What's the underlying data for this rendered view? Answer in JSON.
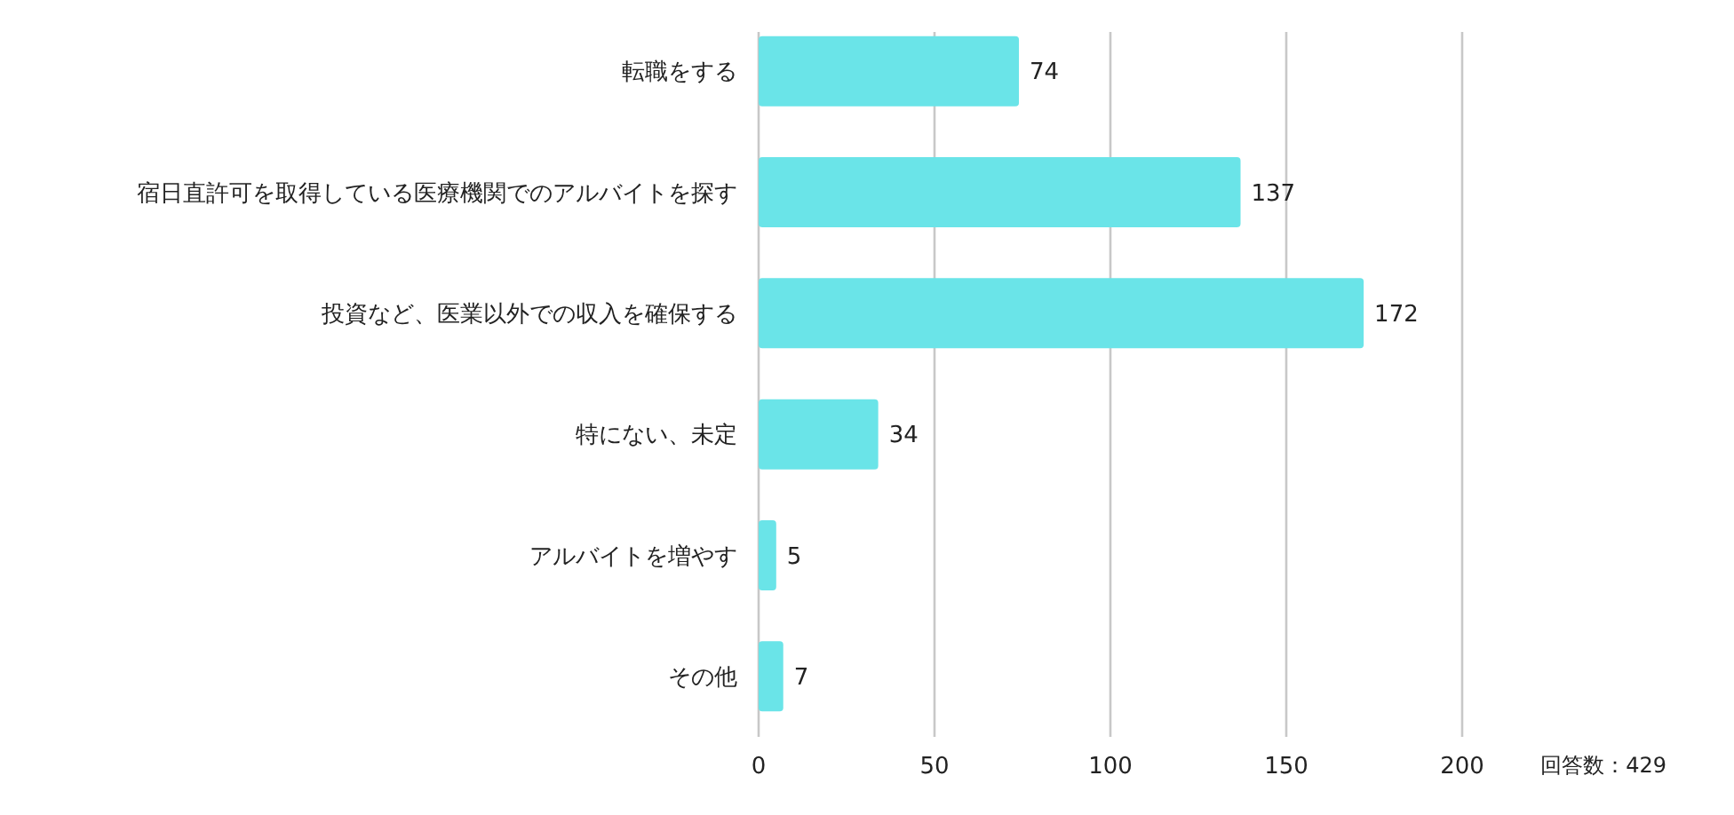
{
  "chart_data": {
    "type": "bar",
    "orientation": "horizontal",
    "categories": [
      "転職をする",
      "宿日直許可を取得している医療機関でのアルバイトを探す",
      "投資など、医業以外での収入を確保する",
      "特にない、未定",
      "アルバイトを増やす",
      "その他"
    ],
    "values": [
      74,
      137,
      172,
      34,
      5,
      7
    ],
    "color": "#6ae4e8",
    "xlim": [
      0,
      200
    ],
    "xticks": [
      0,
      50,
      100,
      150,
      200
    ],
    "grid": "x",
    "data_labels": true,
    "annotations": [
      "回答数：429"
    ]
  }
}
